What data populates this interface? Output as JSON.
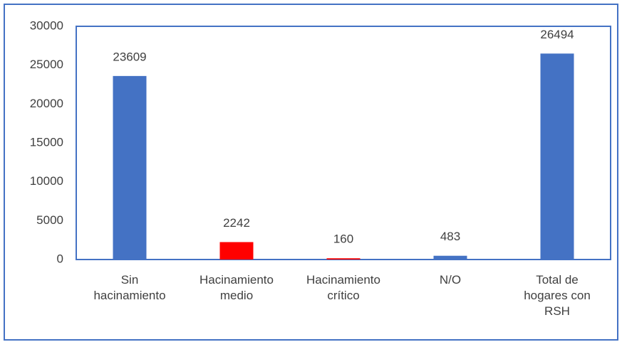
{
  "chart_data": {
    "type": "bar",
    "categories": [
      "Sin hacinamiento",
      "Hacinamiento medio",
      "Hacinamiento crítico",
      "N/O",
      "Total de hogares con RSH"
    ],
    "values": [
      23609,
      2242,
      160,
      483,
      26494
    ],
    "colors": [
      "#4472c4",
      "#ff0000",
      "#ff0000",
      "#4472c4",
      "#4472c4"
    ],
    "ylim": [
      0,
      30000
    ],
    "yticks": [
      0,
      5000,
      10000,
      15000,
      20000,
      25000,
      30000
    ],
    "grid": false
  }
}
